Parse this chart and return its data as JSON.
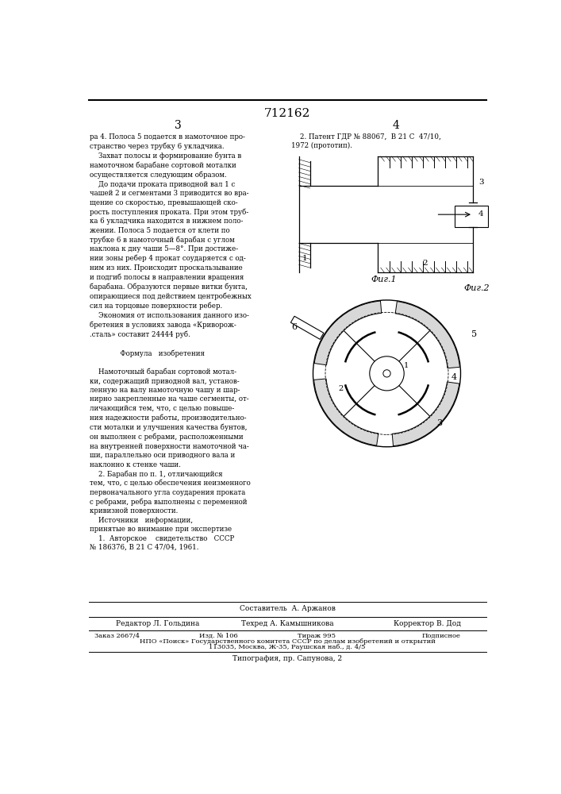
{
  "background_color": "#ffffff",
  "page_number_center": "712162",
  "col_left_num": "3",
  "col_right_num": "4",
  "left_col_text": "ра 4. Полоса 5 подается в намоточное про-\nстранство через трубку 6 укладчика.\n    Захват полосы и формирование бунта в\nнамоточном барабане сортовой моталки\nосуществляется следующим образом.\n    До подачи проката приводной вал 1 с\nчашей 2 и сегментами 3 приводится во вра-\nщение со скоростью, превышающей ско-\nрость поступления проката. При этом труб-\nка 6 укладчика находится в нижнем поло-\nжении. Полоса 5 подается от клети по\nтрубке 6 в намоточный барабан с углом\nнаклона к дну чаши 5—8°. При достиже-\nнии зоны ребер 4 прокат соударяется с од-\nним из них. Происходит проскальзывание\nи подгиб полосы в направлении вращения\nбарабана. Образуются первые витки бунта,\nопирающиеся под действием центробежных\nсил на торцовые поверхности ребер.\n    Экономия от использования данного изо-\nбретения в условиях завода «Криворож-\n.сталь» составит 24444 руб.\n\n              Формула   изобретения\n\n    Намоточный барабан сортовой мотал-\nки, содержащий приводной вал, установ-\nленную на валу намоточную чашу и шар-\nнирно закрепленные на чаше сегменты, от-\nличающийся тем, что, с целью повыше-\nния надежности работы, производительно-\nсти моталки и улучшения качества бунтов,\nон выполнен с ребрами, расположенными\nна внутренней поверхности намоточной ча-\nши, параллельно оси приводного вала и\nнаклонно к стенке чаши.\n    2. Барабан по п. 1, отличающийся\nтем, что, с целью обеспечения неизменного\nпервоначального угла соударения проката\nс ребрами, ребра выполнены с переменной\nкривизной поверхности.\n    Источники   информации,\nпринятые во внимание при экспертизе\n    1.  Авторское    свидетельство   СССР\n№ 186376, В 21 С 47/04, 1961.",
  "right_col_text": "    2. Патент ГДР № 88067,  В 21 С  47/10,\n1972 (прототип).",
  "fig1_label": "Фиг.1",
  "fig2_label": "Фиг.2",
  "footer_sestavitel": "Составитель  А. Аржанов",
  "footer_editor": "Редактор Л. Гольдина",
  "footer_tekhred": "Техред А. Камышникова",
  "footer_korrektor": "Корректор В. Дод",
  "footer_zakaz": "Заказ 2667/4",
  "footer_izd": "Изд. № 106",
  "footer_tirazh": "Тираж 995",
  "footer_podpisnoe": "Подписное",
  "footer_npo": "НПО «Поиск» Государственного комитета СССР по делам изобретений и открытий",
  "footer_address": "113035, Москва, Ж-35, Раушская наб., д. 4/5",
  "footer_tipografia": "Типография, пр. Сапунова, 2"
}
